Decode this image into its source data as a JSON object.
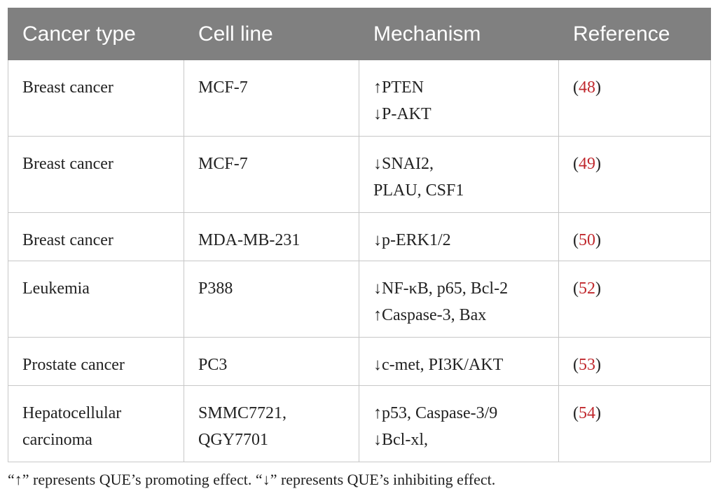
{
  "table": {
    "header": [
      "Cancer type",
      "Cell line",
      "Mechanism",
      "Reference"
    ],
    "rows": [
      [
        [
          "Breast cancer"
        ],
        [
          "MCF-7"
        ],
        [
          "↑PTEN",
          "↓P-AKT"
        ],
        [
          "(",
          "48",
          ")"
        ]
      ],
      [
        [
          "Breast cancer"
        ],
        [
          "MCF-7"
        ],
        [
          "↓SNAI2,",
          "PLAU, CSF1"
        ],
        [
          "(",
          "49",
          ")"
        ]
      ],
      [
        [
          "Breast cancer"
        ],
        [
          "MDA-MB-231"
        ],
        [
          "↓p-ERK1/2"
        ],
        [
          "(",
          "50",
          ")"
        ]
      ],
      [
        [
          "Leukemia"
        ],
        [
          "P388"
        ],
        [
          "↓NF-κB, p65, Bcl-2",
          "↑Caspase-3, Bax"
        ],
        [
          "(",
          "52",
          ")"
        ]
      ],
      [
        [
          "Prostate cancer"
        ],
        [
          "PC3"
        ],
        [
          "↓c-met, PI3K/AKT"
        ],
        [
          "(",
          "53",
          ")"
        ]
      ],
      [
        [
          "Hepatocellular",
          "carcinoma"
        ],
        [
          "SMMC7721,",
          "QGY7701"
        ],
        [
          "↑p53, Caspase-3/9",
          "↓Bcl-xl,"
        ],
        [
          "(",
          "54",
          ")"
        ]
      ]
    ]
  },
  "footnote": "“↑” represents QUE’s promoting effect. “↓” represents QUE’s inhibiting effect."
}
